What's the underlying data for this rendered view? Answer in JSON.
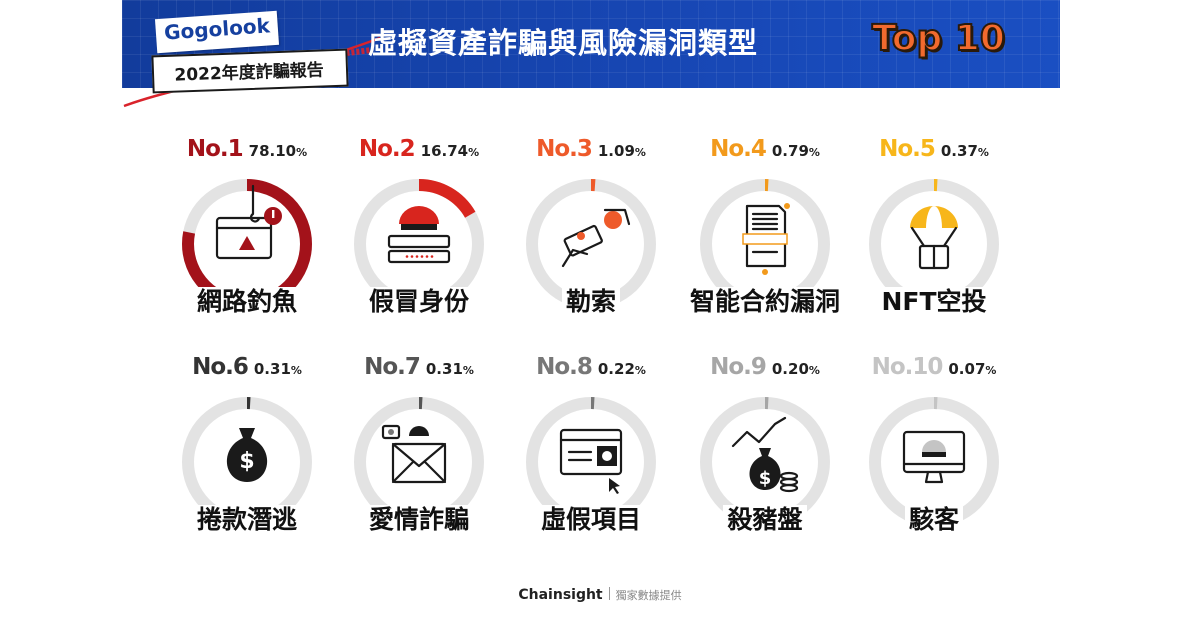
{
  "header": {
    "brand": "Gogolook",
    "report": "2022年度詐騙報告",
    "title": "虛擬資產詐騙與風險漏洞類型",
    "title_highlight": "Top 10"
  },
  "footer": {
    "brand": "Chainsight",
    "note": "獨家數據提供"
  },
  "colors": {
    "banner": "#1746b3",
    "track": "#e3e3e3",
    "top10": "#f26a2e"
  },
  "chart_data": {
    "type": "donut",
    "title": "虛擬資產詐騙與風險漏洞類型 Top 10",
    "unit": "%",
    "items": [
      {
        "rank": "No.1",
        "label": "網路釣魚",
        "value": 78.1,
        "color": "#a3121a",
        "icon": "phishing-icon"
      },
      {
        "rank": "No.2",
        "label": "假冒身份",
        "value": 16.74,
        "color": "#d8251e",
        "icon": "impersonation-icon"
      },
      {
        "rank": "No.3",
        "label": "勒索",
        "value": 1.09,
        "color": "#ee5a2a",
        "icon": "extortion-icon"
      },
      {
        "rank": "No.4",
        "label": "智能合約漏洞",
        "value": 0.79,
        "color": "#f29a1c",
        "icon": "contract-icon"
      },
      {
        "rank": "No.5",
        "label": "NFT空投",
        "value": 0.37,
        "color": "#f7b61b",
        "icon": "airdrop-icon"
      },
      {
        "rank": "No.6",
        "label": "捲款潛逃",
        "value": 0.31,
        "color": "#333333",
        "icon": "money-bag-icon"
      },
      {
        "rank": "No.7",
        "label": "愛情詐騙",
        "value": 0.31,
        "color": "#555555",
        "icon": "romance-mail-icon"
      },
      {
        "rank": "No.8",
        "label": "虛假項目",
        "value": 0.22,
        "color": "#777777",
        "icon": "fake-project-icon"
      },
      {
        "rank": "No.9",
        "label": "殺豬盤",
        "value": 0.2,
        "color": "#a6a6a6",
        "icon": "pig-butchering-icon"
      },
      {
        "rank": "No.10",
        "label": "駭客",
        "value": 0.07,
        "color": "#c4c4c4",
        "icon": "hacker-icon"
      }
    ]
  }
}
